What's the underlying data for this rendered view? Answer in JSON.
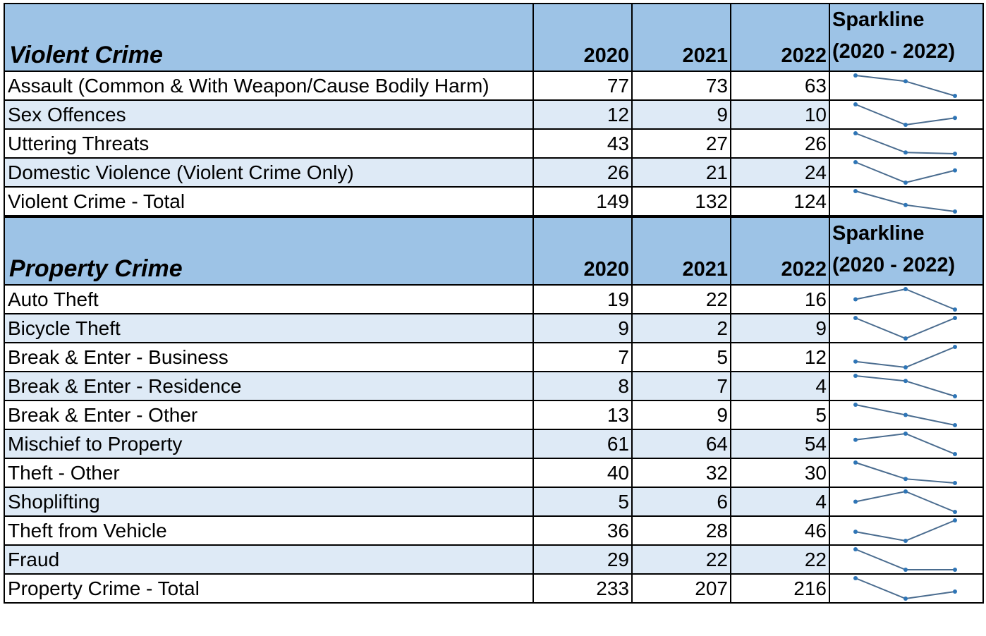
{
  "chart_data": [
    {
      "type": "table",
      "title": "Violent Crime",
      "columns": [
        "2020",
        "2021",
        "2022"
      ],
      "sparkline_header": [
        "Sparkline",
        "(2020 - 2022)"
      ],
      "rows": [
        {
          "label": "Assault (Common & With Weapon/Cause Bodily Harm)",
          "values": [
            77,
            73,
            63
          ]
        },
        {
          "label": "Sex Offences",
          "values": [
            12,
            9,
            10
          ]
        },
        {
          "label": "Uttering Threats",
          "values": [
            43,
            27,
            26
          ]
        },
        {
          "label": "Domestic Violence (Violent Crime Only)",
          "values": [
            26,
            21,
            24
          ]
        },
        {
          "label": "Violent Crime - Total",
          "values": [
            149,
            132,
            124
          ]
        }
      ]
    },
    {
      "type": "table",
      "title": "Property Crime",
      "columns": [
        "2020",
        "2021",
        "2022"
      ],
      "sparkline_header": [
        "Sparkline",
        "(2020 - 2022)"
      ],
      "rows": [
        {
          "label": "Auto Theft",
          "values": [
            19,
            22,
            16
          ]
        },
        {
          "label": "Bicycle Theft",
          "values": [
            9,
            2,
            9
          ]
        },
        {
          "label": "Break & Enter - Business",
          "values": [
            7,
            5,
            12
          ]
        },
        {
          "label": "Break & Enter - Residence",
          "values": [
            8,
            7,
            4
          ]
        },
        {
          "label": "Break & Enter - Other",
          "values": [
            13,
            9,
            5
          ]
        },
        {
          "label": "Mischief to Property",
          "values": [
            61,
            64,
            54
          ]
        },
        {
          "label": "Theft - Other",
          "values": [
            40,
            32,
            30
          ]
        },
        {
          "label": "Shoplifting",
          "values": [
            5,
            6,
            4
          ]
        },
        {
          "label": "Theft from Vehicle",
          "values": [
            36,
            28,
            46
          ]
        },
        {
          "label": "Fraud",
          "values": [
            29,
            22,
            22
          ]
        },
        {
          "label": "Property Crime - Total",
          "values": [
            233,
            207,
            216
          ]
        }
      ]
    }
  ],
  "colors": {
    "header_bg": "#9dc3e6",
    "band_bg": "#deeaf6",
    "sparkline_line": "#4a6c8f",
    "sparkline_marker": "#2e75b6"
  }
}
